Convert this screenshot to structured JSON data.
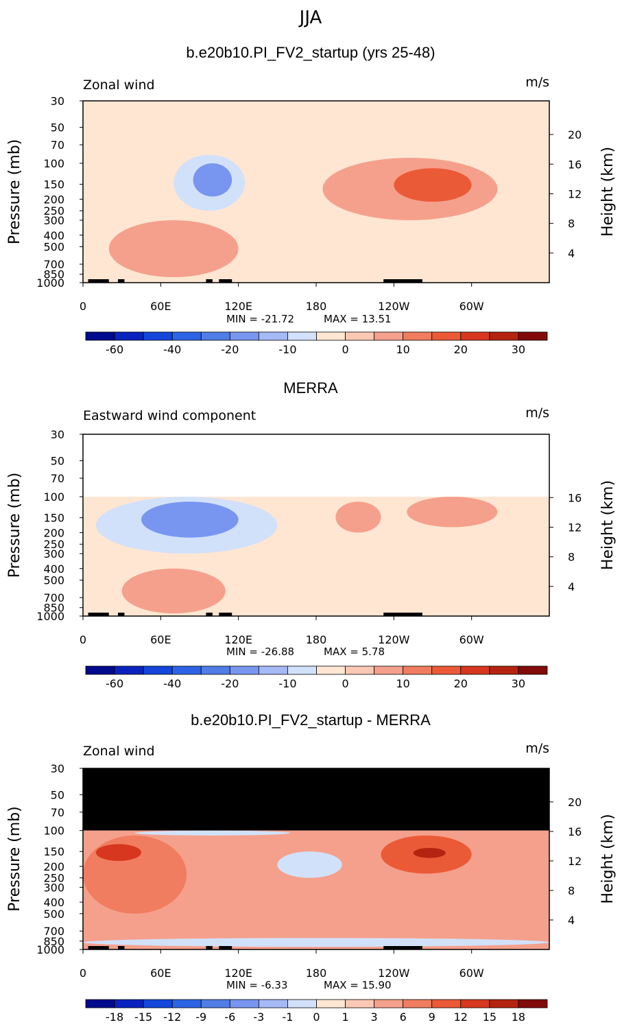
{
  "main_title": "JJA",
  "chart_data": [
    {
      "type": "heatmap",
      "title": "b.e20b10.PI_FV2_startup (yrs 25-48)",
      "variable_label": "Zonal wind",
      "units_label": "m/s",
      "ylabel_left": "Pressure (mb)",
      "ylabel_right": "Height (km)",
      "x_ticks": [
        "0",
        "60E",
        "120E",
        "180",
        "120W",
        "60W"
      ],
      "x_tick_values": [
        0,
        60,
        120,
        180,
        240,
        300
      ],
      "x_range": [
        0,
        360
      ],
      "pressure_ticks": [
        "30",
        "50",
        "70",
        "100",
        "150",
        "200",
        "250",
        "300",
        "400",
        "500",
        "700",
        "850",
        "1000"
      ],
      "pressure_values": [
        30,
        50,
        70,
        100,
        150,
        200,
        250,
        300,
        400,
        500,
        700,
        850,
        1000
      ],
      "height_ticks": [
        "20",
        "16",
        "12",
        "8",
        "4"
      ],
      "height_values": [
        20,
        16,
        12,
        8,
        4
      ],
      "pressure_range": [
        1000,
        30
      ],
      "data_top": 30,
      "min_label": "MIN = -21.72",
      "max_label": "MAX = 13.51",
      "colorbar_labels": [
        "-60",
        "-40",
        "-20",
        "-10",
        "0",
        "10",
        "20",
        "30"
      ],
      "colorbar_label_bins": [
        1,
        3,
        5,
        7,
        9,
        11,
        13,
        15
      ],
      "colorbar_colors": [
        "#000a8c",
        "#0a23be",
        "#1446dc",
        "#2d64e6",
        "#507de6",
        "#7896f0",
        "#a5b9f5",
        "#d2e1fa",
        "#fee6d2",
        "#fac8b4",
        "#f5a08c",
        "#f07d5f",
        "#eb5a37",
        "#d7371e",
        "#b4230f",
        "#820a0a"
      ],
      "features": [
        {
          "kind": "negative",
          "lon": [
            70,
            125
          ],
          "p": [
            85,
            250
          ],
          "value": -10
        },
        {
          "kind": "negative",
          "lon": [
            85,
            115
          ],
          "p": [
            100,
            190
          ],
          "value": -20
        },
        {
          "kind": "negative",
          "lon": [
            0,
            360
          ],
          "p": [
            55,
            80
          ],
          "value": -5
        },
        {
          "kind": "positive",
          "lon": [
            185,
            320
          ],
          "p": [
            90,
            300
          ],
          "value": 5
        },
        {
          "kind": "positive",
          "lon": [
            240,
            300
          ],
          "p": [
            110,
            210
          ],
          "value": 15
        },
        {
          "kind": "positive",
          "lon": [
            20,
            120
          ],
          "p": [
            300,
            900
          ],
          "value": 5
        }
      ]
    },
    {
      "type": "heatmap",
      "title": "MERRA",
      "variable_label": "Eastward wind component",
      "units_label": "m/s",
      "ylabel_left": "Pressure (mb)",
      "ylabel_right": "Height (km)",
      "x_ticks": [
        "0",
        "60E",
        "120E",
        "180",
        "120W",
        "60W"
      ],
      "x_tick_values": [
        0,
        60,
        120,
        180,
        240,
        300
      ],
      "x_range": [
        0,
        360
      ],
      "pressure_ticks": [
        "30",
        "50",
        "70",
        "100",
        "150",
        "200",
        "250",
        "300",
        "400",
        "500",
        "700",
        "850",
        "1000"
      ],
      "pressure_values": [
        30,
        50,
        70,
        100,
        150,
        200,
        250,
        300,
        400,
        500,
        700,
        850,
        1000
      ],
      "height_ticks": [
        "16",
        "12",
        "8",
        "4"
      ],
      "height_values": [
        16,
        12,
        8,
        4
      ],
      "pressure_range": [
        1000,
        30
      ],
      "data_top": 100,
      "min_label": "MIN = -26.88",
      "max_label": "MAX = 5.78",
      "colorbar_labels": [
        "-60",
        "-40",
        "-20",
        "-10",
        "0",
        "10",
        "20",
        "30"
      ],
      "colorbar_label_bins": [
        1,
        3,
        5,
        7,
        9,
        11,
        13,
        15
      ],
      "colorbar_colors": [
        "#000a8c",
        "#0a23be",
        "#1446dc",
        "#2d64e6",
        "#507de6",
        "#7896f0",
        "#a5b9f5",
        "#d2e1fa",
        "#fee6d2",
        "#fac8b4",
        "#f5a08c",
        "#f07d5f",
        "#eb5a37",
        "#d7371e",
        "#b4230f",
        "#820a0a"
      ],
      "features": [
        {
          "kind": "negative",
          "lon": [
            10,
            150
          ],
          "p": [
            100,
            300
          ],
          "value": -10
        },
        {
          "kind": "negative",
          "lon": [
            45,
            120
          ],
          "p": [
            110,
            220
          ],
          "value": -20
        },
        {
          "kind": "positive",
          "lon": [
            195,
            230
          ],
          "p": [
            110,
            200
          ],
          "value": 5
        },
        {
          "kind": "positive",
          "lon": [
            250,
            320
          ],
          "p": [
            100,
            180
          ],
          "value": 5
        },
        {
          "kind": "positive",
          "lon": [
            30,
            110
          ],
          "p": [
            400,
            950
          ],
          "value": 5
        }
      ]
    },
    {
      "type": "heatmap",
      "title": "b.e20b10.PI_FV2_startup - MERRA",
      "variable_label": "Zonal wind",
      "units_label": "m/s",
      "ylabel_left": "Pressure (mb)",
      "ylabel_right": "Height (km)",
      "x_ticks": [
        "0",
        "60E",
        "120E",
        "180",
        "120W",
        "60W"
      ],
      "x_tick_values": [
        0,
        60,
        120,
        180,
        240,
        300
      ],
      "x_range": [
        0,
        360
      ],
      "pressure_ticks": [
        "30",
        "50",
        "70",
        "100",
        "150",
        "200",
        "250",
        "300",
        "400",
        "500",
        "700",
        "850",
        "1000"
      ],
      "pressure_values": [
        30,
        50,
        70,
        100,
        150,
        200,
        250,
        300,
        400,
        500,
        700,
        850,
        1000
      ],
      "height_ticks": [
        "20",
        "16",
        "12",
        "8",
        "4"
      ],
      "height_values": [
        20,
        16,
        12,
        8,
        4
      ],
      "pressure_range": [
        1000,
        30
      ],
      "data_top": 100,
      "min_label": "MIN = -6.33",
      "max_label": "MAX = 15.90",
      "colorbar_labels": [
        "-18",
        "-15",
        "-12",
        "-9",
        "-6",
        "-3",
        "-1",
        "0",
        "1",
        "3",
        "6",
        "9",
        "12",
        "15",
        "18"
      ],
      "colorbar_label_bins": [
        1,
        2,
        3,
        4,
        5,
        6,
        7,
        8,
        9,
        10,
        11,
        12,
        13,
        14,
        15
      ],
      "colorbar_colors": [
        "#000a8c",
        "#0a23be",
        "#1446dc",
        "#2d64e6",
        "#507de6",
        "#7896f0",
        "#a5b9f5",
        "#d2e1fa",
        "#fee6d2",
        "#fac8b4",
        "#f5a08c",
        "#f07d5f",
        "#eb5a37",
        "#d7371e",
        "#b4230f",
        "#820a0a"
      ],
      "features": [
        {
          "kind": "positive",
          "lon": [
            0,
            80
          ],
          "p": [
            110,
            500
          ],
          "value": 6
        },
        {
          "kind": "positive",
          "lon": [
            10,
            45
          ],
          "p": [
            130,
            180
          ],
          "value": 12
        },
        {
          "kind": "positive",
          "lon": [
            230,
            300
          ],
          "p": [
            110,
            230
          ],
          "value": 9
        },
        {
          "kind": "positive",
          "lon": [
            255,
            280
          ],
          "p": [
            140,
            170
          ],
          "value": 15
        },
        {
          "kind": "negative",
          "lon": [
            40,
            160
          ],
          "p": [
            100,
            110
          ],
          "value": -1
        },
        {
          "kind": "negative",
          "lon": [
            150,
            200
          ],
          "p": [
            150,
            250
          ],
          "value": -1
        },
        {
          "kind": "negative",
          "lon": [
            0,
            360
          ],
          "p": [
            800,
            950
          ],
          "value": -1
        }
      ]
    }
  ]
}
